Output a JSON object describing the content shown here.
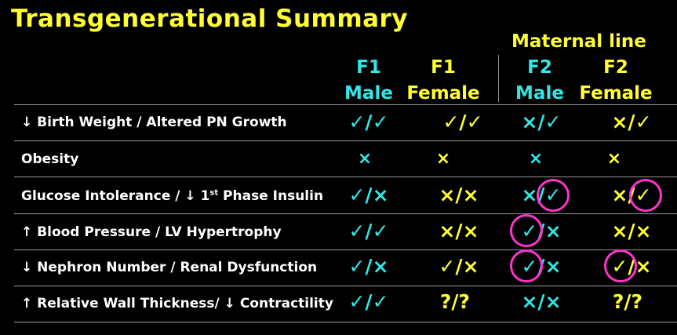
{
  "title": "Transgenerational Summary",
  "maternal_line": "Maternal line",
  "columns": [
    {
      "gen": "F1",
      "sex": "Male"
    },
    {
      "gen": "F1",
      "sex": "Female"
    },
    {
      "gen": "F2",
      "sex": "Male"
    },
    {
      "gen": "F2",
      "sex": "Female"
    }
  ],
  "rows": [
    {
      "label_pre": "↓ Birth Weight / Altered PN Growth",
      "label_sup": "",
      "label_post": "",
      "cells": [
        "✓/✓",
        "✓/✓",
        "×/✓",
        "×/✓"
      ]
    },
    {
      "label_pre": "Obesity",
      "label_sup": "",
      "label_post": "",
      "cells": [
        "×",
        "×",
        "×",
        "×"
      ]
    },
    {
      "label_pre": "Glucose Intolerance / ↓ 1",
      "label_sup": "st",
      "label_post": " Phase Insulin",
      "cells": [
        "✓/×",
        "×/×",
        "×/✓",
        "×/✓"
      ]
    },
    {
      "label_pre": "↑ Blood Pressure / LV Hypertrophy",
      "label_sup": "",
      "label_post": "",
      "cells": [
        "✓/✓",
        "×/×",
        "✓/×",
        "×/×"
      ]
    },
    {
      "label_pre": "↓ Nephron Number / Renal Dysfunction",
      "label_sup": "",
      "label_post": "",
      "cells": [
        "✓/×",
        "✓/×",
        "✓/×",
        "✓/×"
      ]
    },
    {
      "label_pre": "↑ Relative Wall Thickness/ ↓ Contractility",
      "label_sup": "",
      "label_post": "",
      "cells": [
        "✓/✓",
        "?/?",
        "×/×",
        "?/?"
      ]
    }
  ],
  "colors": {
    "cyan": "#33e6e6",
    "yellow": "#ffff33",
    "highlight_circle": "#ff33cc",
    "background": "#000000"
  }
}
